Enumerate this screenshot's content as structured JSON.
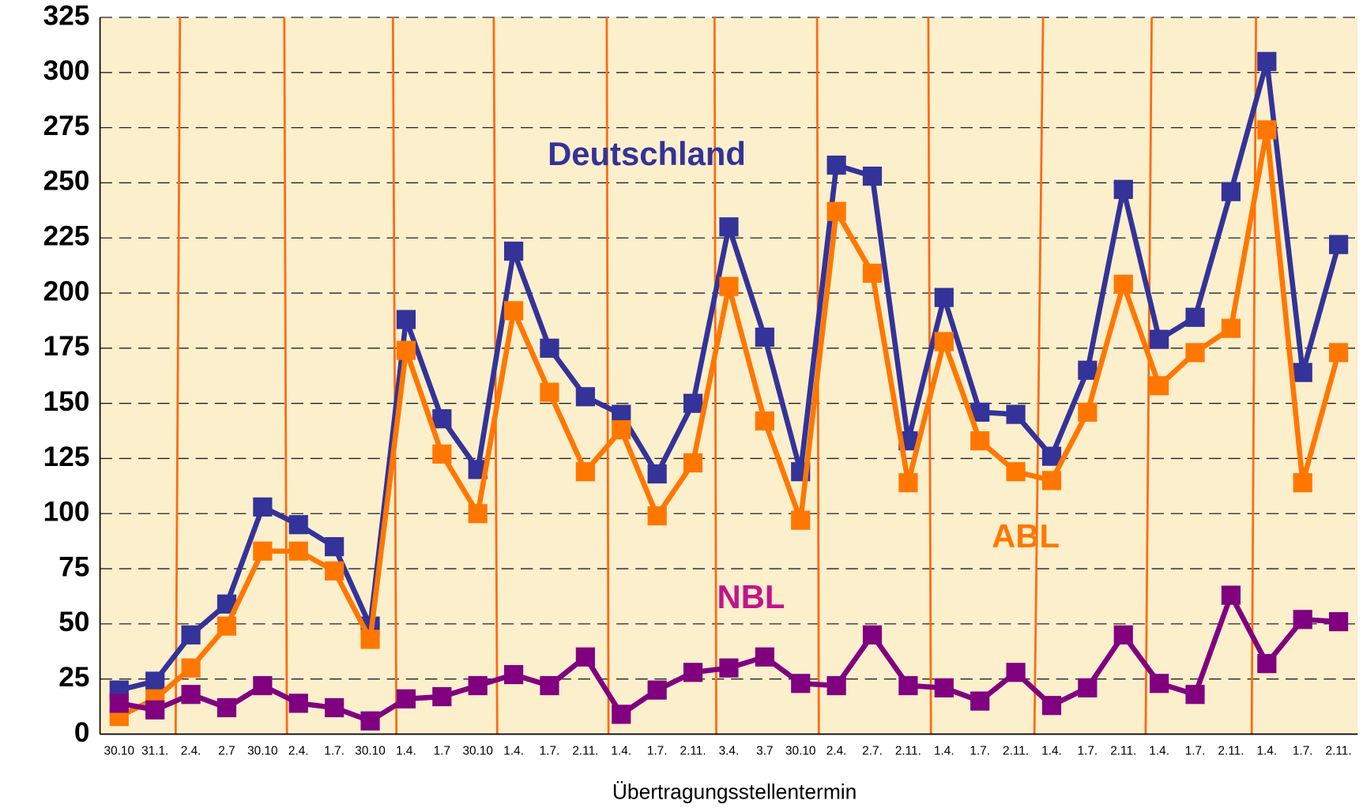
{
  "chart_data": {
    "type": "line",
    "x_label": "Übertragungsstellentermin",
    "categories": [
      "30.10",
      "31.1.",
      "2.4.",
      "2.7",
      "30.10",
      "2.4.",
      "1.7.",
      "30.10",
      "1.4.",
      "1.7",
      "30.10",
      "1.4.",
      "1.7.",
      "2.11.",
      "1.4.",
      "1.7.",
      "2.11.",
      "3.4.",
      "3.7",
      "30.10",
      "2.4.",
      "2.7.",
      "2.11.",
      "1.4.",
      "1.7.",
      "2.11.",
      "1.4.",
      "1.7.",
      "2.11.",
      "1.4.",
      "1.7.",
      "2.11.",
      "1.4.",
      "1.7.",
      "2.11."
    ],
    "series": [
      {
        "name": "Deutschland",
        "color": "#333399",
        "values": [
          20,
          24,
          45,
          59,
          103,
          95,
          85,
          49,
          188,
          143,
          120,
          219,
          175,
          153,
          145,
          118,
          150,
          230,
          180,
          119,
          258,
          253,
          133,
          198,
          146,
          145,
          126,
          165,
          247,
          179,
          189,
          246,
          305,
          164,
          222
        ]
      },
      {
        "name": "ABL",
        "color": "#ff7700",
        "values": [
          8,
          16,
          30,
          49,
          83,
          83,
          74,
          43,
          174,
          127,
          100,
          192,
          155,
          119,
          138,
          99,
          123,
          203,
          142,
          97,
          237,
          209,
          114,
          178,
          133,
          119,
          115,
          146,
          204,
          158,
          173,
          184,
          274,
          114,
          173
        ]
      },
      {
        "name": "NBL",
        "color": "#800080",
        "label_color": "#c0158c",
        "values": [
          14,
          11,
          18,
          12,
          22,
          14,
          12,
          6,
          16,
          17,
          22,
          27,
          22,
          35,
          9,
          20,
          28,
          30,
          35,
          23,
          22,
          45,
          22,
          21,
          15,
          28,
          13,
          21,
          45,
          23,
          18,
          63,
          32,
          52,
          51
        ]
      }
    ],
    "ylim": [
      0,
      325
    ],
    "yticks": [
      0,
      25,
      50,
      75,
      100,
      125,
      150,
      175,
      200,
      225,
      250,
      275,
      300,
      325
    ],
    "grid": true
  }
}
